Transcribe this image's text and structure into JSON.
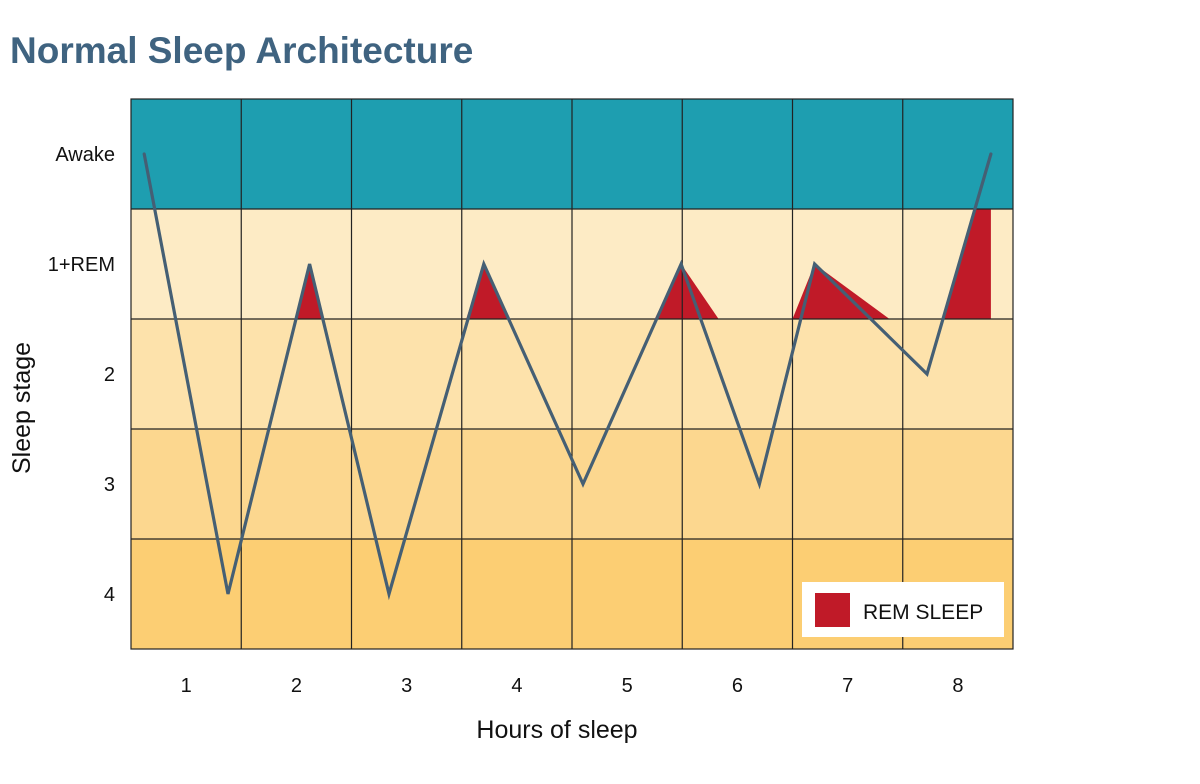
{
  "chart_data": {
    "type": "line",
    "title": "Normal Sleep Architecture",
    "xlabel": "Hours of sleep",
    "ylabel": "Sleep stage",
    "categories": [
      "1",
      "2",
      "3",
      "4",
      "5",
      "6",
      "7",
      "8"
    ],
    "stages": [
      "Awake",
      "1+REM",
      "2",
      "3",
      "4"
    ],
    "stage_colors": [
      "#1e9eb0",
      "#fdebc5",
      "#fde2ab",
      "#fcd78f",
      "#fcce73"
    ],
    "xlim": [
      0,
      8
    ],
    "grid": true,
    "series": [
      {
        "color": "#455f74",
        "points": [
          {
            "x": 0.12,
            "y": "Awake"
          },
          {
            "x": 0.88,
            "y": "4"
          },
          {
            "x": 1.62,
            "y": "1+REM"
          },
          {
            "x": 2.34,
            "y": "4"
          },
          {
            "x": 3.2,
            "y": "1+REM"
          },
          {
            "x": 4.1,
            "y": "3"
          },
          {
            "x": 4.99,
            "y": "1+REM"
          },
          {
            "x": 5.7,
            "y": "3"
          },
          {
            "x": 6.2,
            "y": "1+REM"
          },
          {
            "x": 7.22,
            "y": "2"
          },
          {
            "x": 7.8,
            "y": "Awake"
          }
        ]
      }
    ],
    "rem_periods": [
      {
        "start": 1.5,
        "end": 1.73
      },
      {
        "start": 3.04,
        "end": 3.44
      },
      {
        "start": 4.75,
        "end": 5.33
      },
      {
        "start": 6.0,
        "end": 6.88
      },
      {
        "start": 7.36,
        "end": 7.8
      }
    ],
    "legend": {
      "label": "REM SLEEP",
      "color": "#c01a28",
      "placement": "bottom-right"
    }
  }
}
